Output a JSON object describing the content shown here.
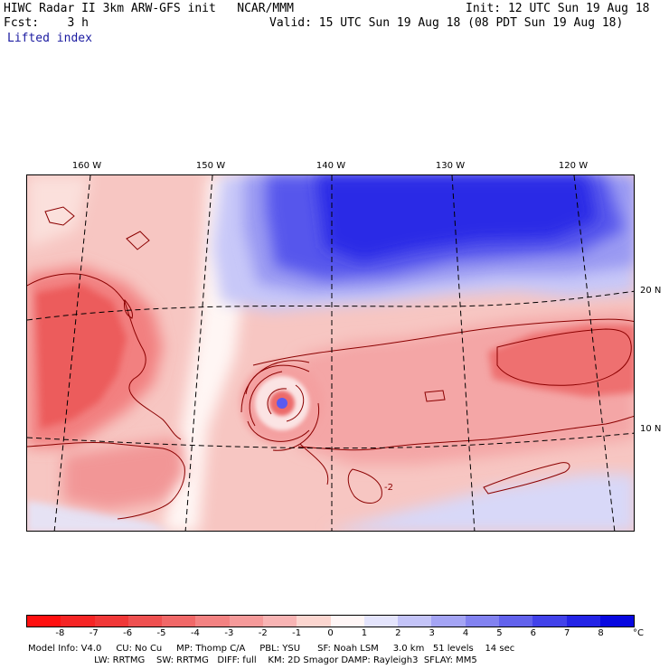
{
  "header": {
    "line1_left": "HIWC Radar II 3km ARW-GFS init   NCAR/MMM",
    "line1_right": "Init: 12 UTC Sun 19 Aug 18",
    "line2_left": "Fcst:    3 h",
    "line2_right": "Valid: 15 UTC Sun 19 Aug 18 (08 PDT Sun 19 Aug 18)",
    "field_label": "Lifted index"
  },
  "map": {
    "longitude_labels": [
      "160 W",
      "150 W",
      "140 W",
      "130 W",
      "120 W"
    ],
    "latitude_labels": [
      "20 N",
      "10 N"
    ],
    "contour_label": "-2",
    "colors": {
      "deep_red": "#ff1a1a",
      "mid_red": "#f06a6a",
      "light_red": "#f7aaaa",
      "pale_pink": "#fbd8d4",
      "white": "#fffafa",
      "pale_blue": "#c8c8f8",
      "mid_blue": "#7070f0",
      "deep_blue": "#1a1aee",
      "contour": "#8b0000"
    }
  },
  "colorbar": {
    "tick_labels": [
      "-8",
      "-7",
      "-6",
      "-5",
      "-4",
      "-3",
      "-2",
      "-1",
      "0",
      "1",
      "2",
      "3",
      "4",
      "5",
      "6",
      "7",
      "8"
    ],
    "unit": "°C",
    "colors": [
      "#ff1010",
      "#f52525",
      "#f03838",
      "#ee5050",
      "#f06868",
      "#f38282",
      "#f59a9a",
      "#f8b4b4",
      "#fcd6d0",
      "#fff6f6",
      "#e4e4fc",
      "#c4c4f8",
      "#a4a4f4",
      "#8282f0",
      "#6262ec",
      "#4242ea",
      "#2424e6",
      "#0808e0"
    ]
  },
  "footer": {
    "line1": "Model Info: V4.0     CU: No Cu     MP: Thomp C/A     PBL: YSU      SF: Noah LSM     3.0 km   51 levels    14 sec",
    "line2": "                       LW: RRTMG    SW: RRTMG   DIFF: full    KM: 2D Smagor DAMP: Rayleigh3  SFLAY: MM5"
  }
}
